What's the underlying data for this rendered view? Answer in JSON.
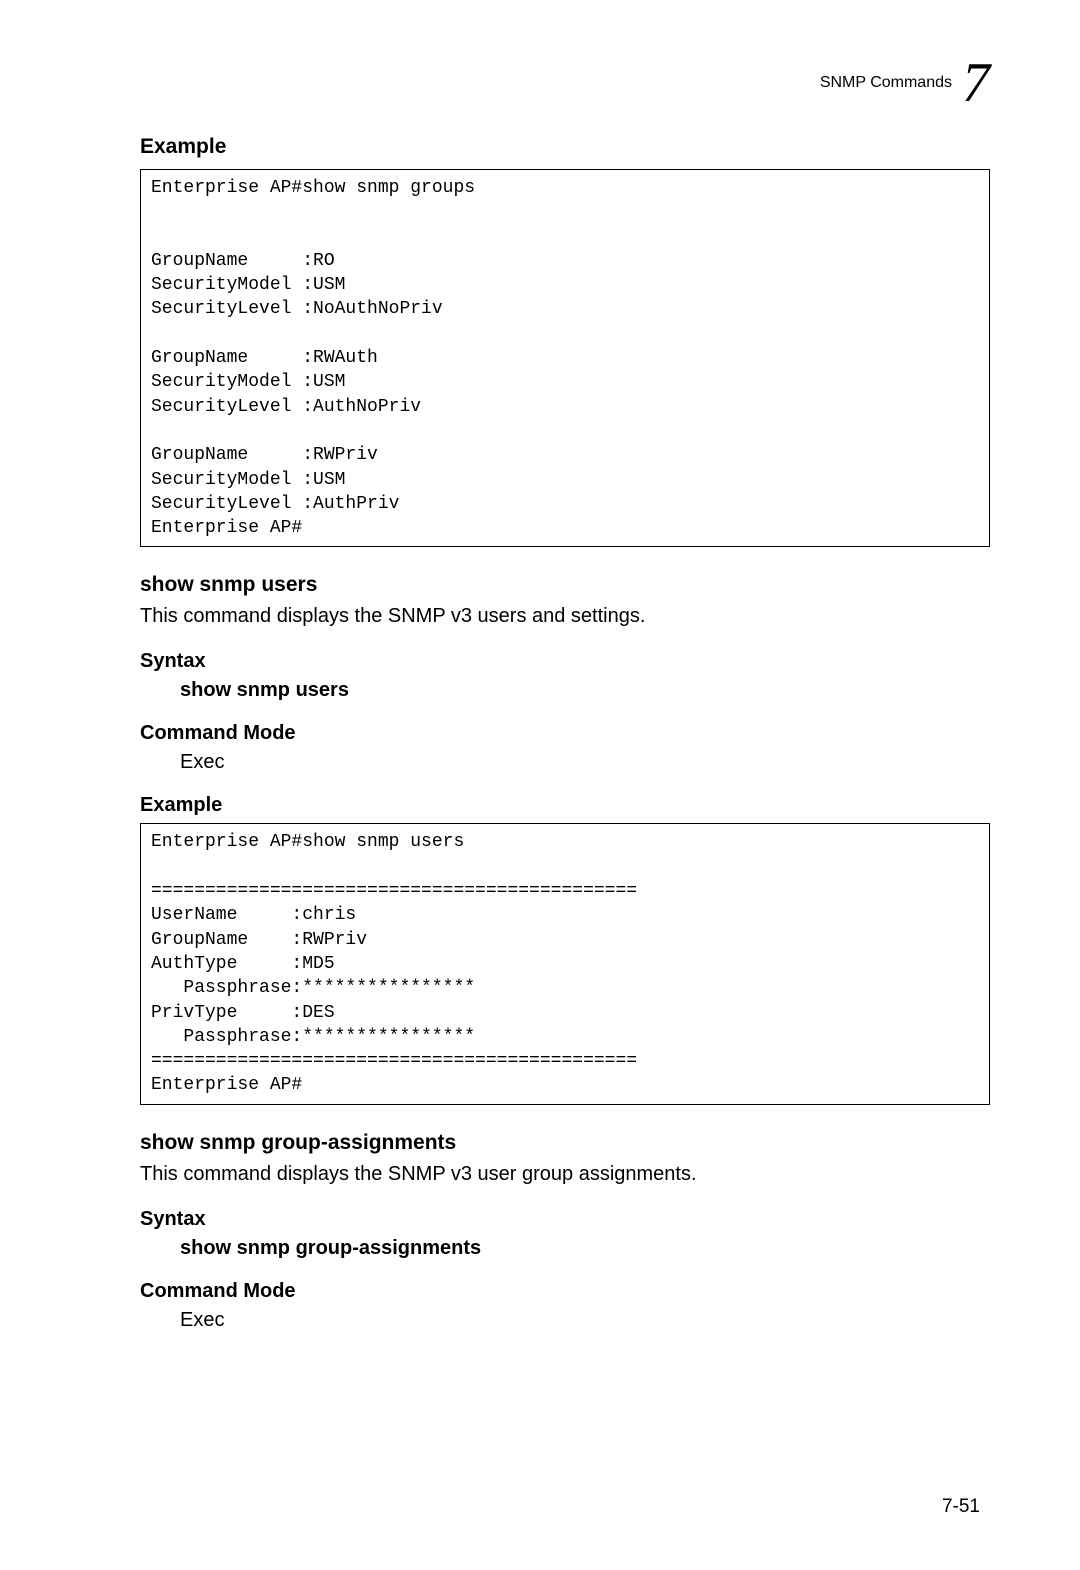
{
  "header": {
    "title": "SNMP Commands",
    "chapter": "7"
  },
  "pageNumber": "7-51",
  "sections": [
    {
      "example_heading": "Example",
      "example_code": "Enterprise AP#show snmp groups\n\n\nGroupName     :RO\nSecurityModel :USM\nSecurityLevel :NoAuthNoPriv\n\nGroupName     :RWAuth\nSecurityModel :USM\nSecurityLevel :AuthNoPriv\n\nGroupName     :RWPriv\nSecurityModel :USM\nSecurityLevel :AuthPriv\nEnterprise AP#"
    },
    {
      "command_name": "show snmp users",
      "description": "This command displays the SNMP v3 users and settings.",
      "syntax_heading": "Syntax",
      "syntax_value": "show snmp users",
      "mode_heading": "Command Mode",
      "mode_value": "Exec",
      "example_heading": "Example",
      "example_code": "Enterprise AP#show snmp users\n\n=============================================\nUserName     :chris\nGroupName    :RWPriv\nAuthType     :MD5\n   Passphrase:****************\nPrivType     :DES\n   Passphrase:****************\n=============================================\nEnterprise AP#"
    },
    {
      "command_name": "show snmp group-assignments",
      "description": "This command displays the SNMP v3 user group assignments.",
      "syntax_heading": "Syntax",
      "syntax_value": "show snmp group-assignments",
      "mode_heading": "Command Mode",
      "mode_value": "Exec"
    }
  ]
}
